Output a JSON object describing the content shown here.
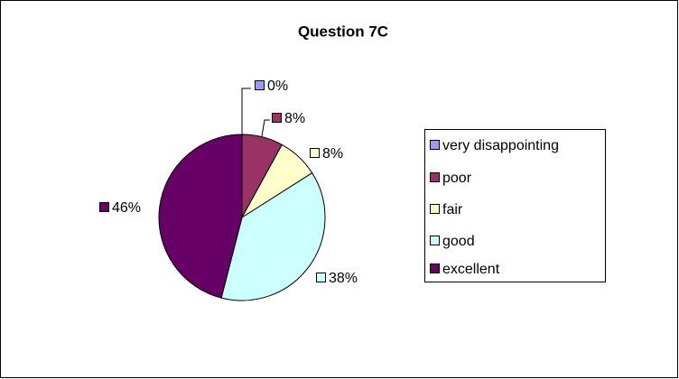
{
  "chart_data": {
    "type": "pie",
    "title": "Question 7C",
    "categories": [
      "very disappointing",
      "poor",
      "fair",
      "good",
      "excellent"
    ],
    "values": [
      0,
      8,
      8,
      38,
      46
    ],
    "value_labels": [
      "0%",
      "8%",
      "8%",
      "38%",
      "46%"
    ],
    "colors": [
      "#9999FF",
      "#993366",
      "#FFFFCC",
      "#CCFFFF",
      "#660066"
    ],
    "legend": "right"
  }
}
